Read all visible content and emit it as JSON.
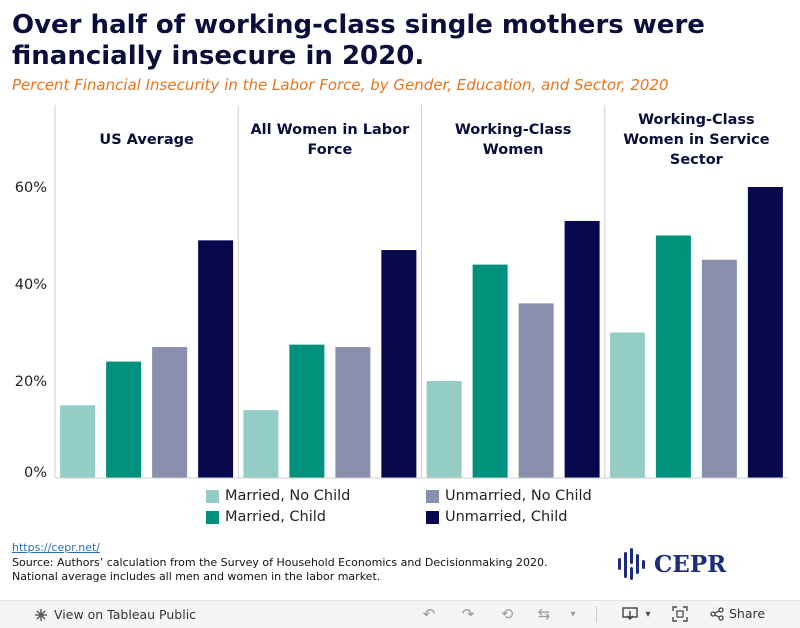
{
  "title": "Over half of working-class single mothers were financially insecure in 2020.",
  "subtitle": "Percent Financial Insecurity in the Labor Force, by Gender, Education, and Sector, 2020",
  "colors": {
    "married_no_child": "#93cdc6",
    "married_child": "#00917d",
    "unmarried_no_child": "#8b8fae",
    "unmarried_child": "#08084f",
    "title": "#0a0e3d",
    "subtitle": "#e8731e"
  },
  "chart_data": {
    "type": "bar",
    "ylim": [
      0,
      0.6
    ],
    "yticks": [
      0,
      0.2,
      0.4,
      0.6
    ],
    "ytick_labels": [
      "0%",
      "20%",
      "40%",
      "60%"
    ],
    "grid": false,
    "legend_position": "bottom",
    "panels": [
      {
        "label": "US Average",
        "values": [
          0.15,
          0.24,
          0.27,
          0.49
        ]
      },
      {
        "label": "All Women in Labor Force",
        "values": [
          0.14,
          0.275,
          0.27,
          0.47
        ]
      },
      {
        "label": "Working-Class Women",
        "values": [
          0.2,
          0.44,
          0.36,
          0.53
        ]
      },
      {
        "label": "Working-Class Women in Service Sector",
        "values": [
          0.3,
          0.5,
          0.45,
          0.6
        ]
      }
    ],
    "series": [
      {
        "name": "Married, No Child",
        "color": "#93cdc6"
      },
      {
        "name": "Married, Child",
        "color": "#00917d"
      },
      {
        "name": "Unmarried, No Child",
        "color": "#8b8fae"
      },
      {
        "name": "Unmarried, Child",
        "color": "#08084f"
      }
    ]
  },
  "source": {
    "link": "https://cepr.net/",
    "note": "Source: Authors’ calculation from the Survey of Household Economics and Decisionmaking 2020. National average includes all men and women in the labor market."
  },
  "logo": {
    "text": "CEPR"
  },
  "footer": {
    "view_label": "View on Tableau Public",
    "share_label": "Share"
  }
}
